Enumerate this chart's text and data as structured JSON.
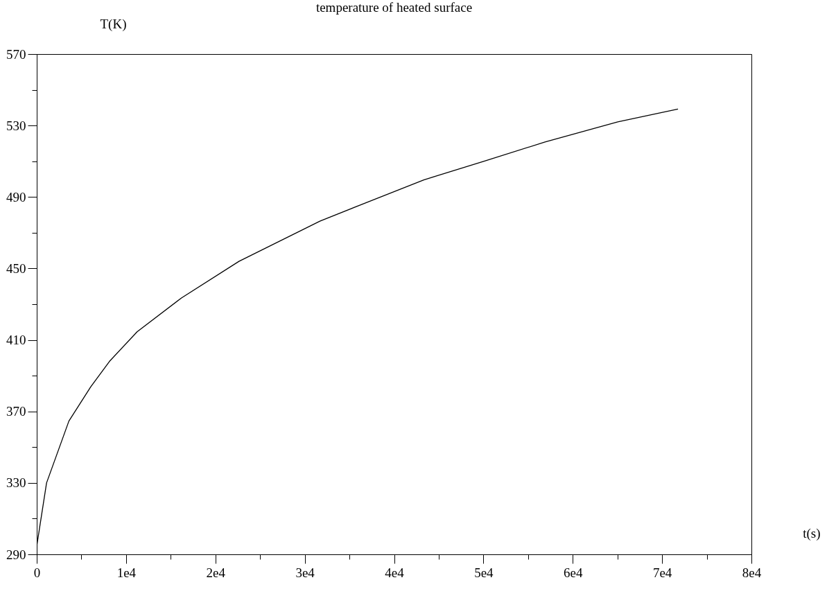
{
  "chart_data": {
    "type": "line",
    "title": "temperature of heated surface",
    "xlabel": "t(s)",
    "ylabel": "T(K)",
    "x": [
      0,
      1100,
      3600,
      6050,
      8140,
      11240,
      16200,
      22640,
      31700,
      36360,
      43330,
      50080,
      56900,
      65040,
      71780
    ],
    "series": [
      {
        "color": "#000000",
        "values": [
          294.6,
          330,
          364.6,
          383.8,
          398,
          414.6,
          433.5,
          454,
          476.5,
          485.8,
          499.6,
          510,
          520.8,
          532,
          539.2
        ]
      }
    ],
    "xlim": [
      0,
      80000
    ],
    "ylim": [
      290,
      570
    ],
    "xticks": [
      {
        "value": 0,
        "label": "0"
      },
      {
        "value": 5000,
        "label": null
      },
      {
        "value": 10000,
        "label": "1e4"
      },
      {
        "value": 15000,
        "label": null
      },
      {
        "value": 20000,
        "label": "2e4"
      },
      {
        "value": 25000,
        "label": null
      },
      {
        "value": 30000,
        "label": "3e4"
      },
      {
        "value": 35000,
        "label": null
      },
      {
        "value": 40000,
        "label": "4e4"
      },
      {
        "value": 45000,
        "label": null
      },
      {
        "value": 50000,
        "label": "5e4"
      },
      {
        "value": 55000,
        "label": null
      },
      {
        "value": 60000,
        "label": "6e4"
      },
      {
        "value": 65000,
        "label": null
      },
      {
        "value": 70000,
        "label": "7e4"
      },
      {
        "value": 75000,
        "label": null
      },
      {
        "value": 80000,
        "label": "8e4"
      }
    ],
    "yticks": [
      290,
      {
        "value": 310,
        "label": null
      },
      330,
      {
        "value": 350,
        "label": null
      },
      370,
      {
        "value": 390,
        "label": null
      },
      410,
      {
        "value": 430,
        "label": null
      },
      450,
      {
        "value": 470,
        "label": null
      },
      490,
      {
        "value": 510,
        "label": null
      },
      530,
      {
        "value": 550,
        "label": null
      },
      570
    ],
    "grid": false,
    "legend": false,
    "marker": "none",
    "line_style": "solid"
  }
}
